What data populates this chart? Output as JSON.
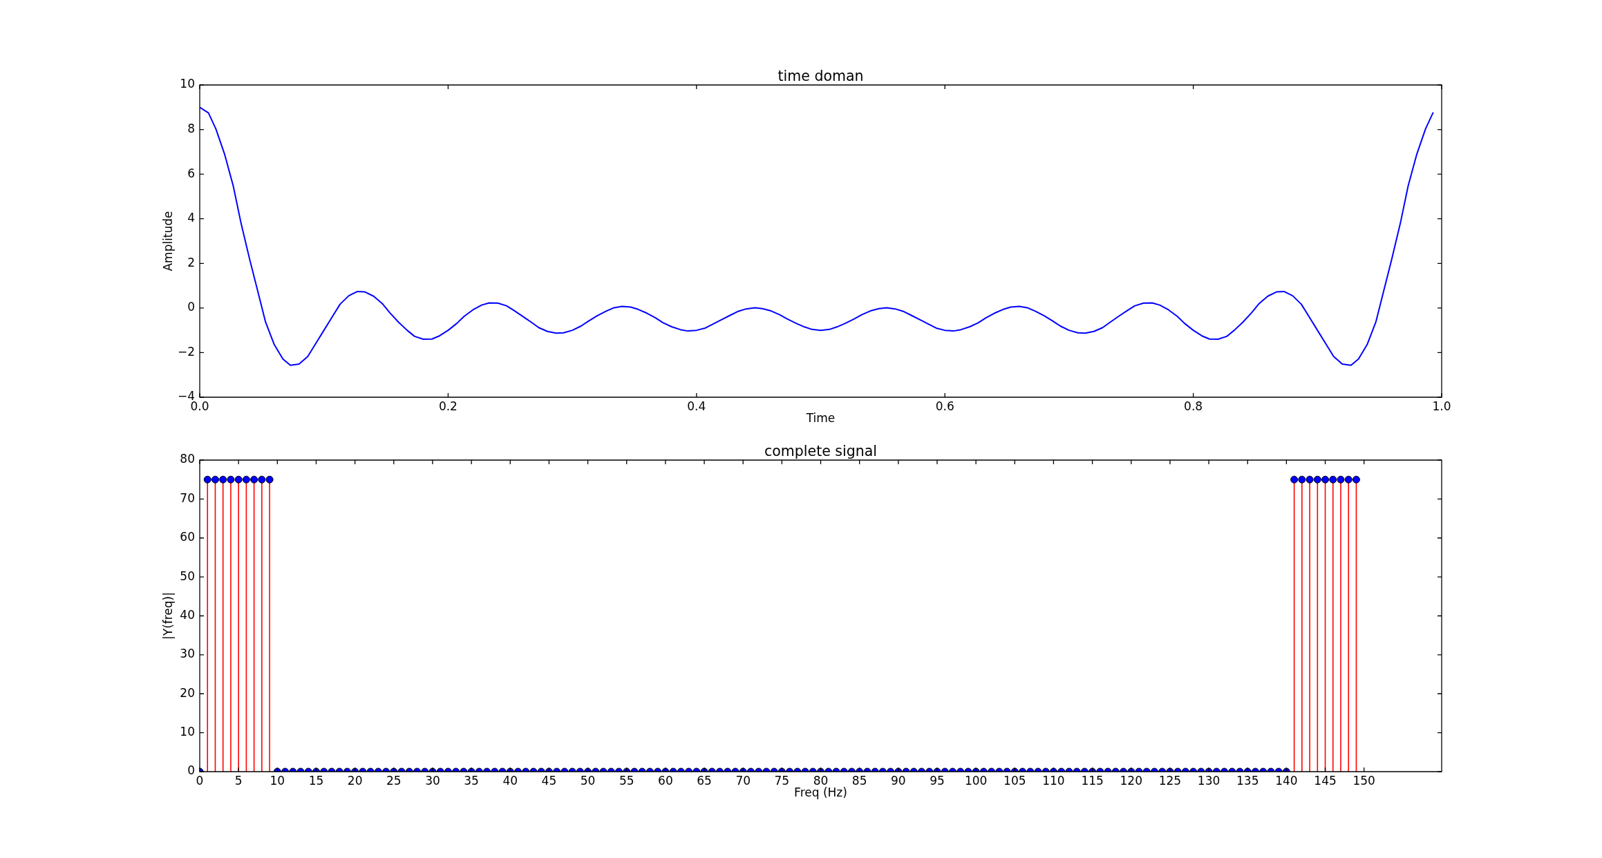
{
  "chart_data": [
    {
      "type": "line",
      "title": "time doman",
      "xlabel": "Time",
      "ylabel": "Amplitude",
      "x": [
        0,
        0.007,
        0.013,
        0.02,
        0.027,
        0.033,
        0.04,
        0.047,
        0.053,
        0.06,
        0.067,
        0.073,
        0.08,
        0.087,
        0.093,
        0.1,
        0.107,
        0.113,
        0.12,
        0.127,
        0.133,
        0.14,
        0.147,
        0.153,
        0.16,
        0.167,
        0.173,
        0.18,
        0.187,
        0.193,
        0.2,
        0.207,
        0.213,
        0.22,
        0.227,
        0.233,
        0.24,
        0.247,
        0.253,
        0.26,
        0.267,
        0.273,
        0.28,
        0.287,
        0.293,
        0.3,
        0.307,
        0.313,
        0.32,
        0.327,
        0.333,
        0.34,
        0.347,
        0.353,
        0.36,
        0.367,
        0.373,
        0.38,
        0.387,
        0.393,
        0.4,
        0.407,
        0.413,
        0.42,
        0.427,
        0.433,
        0.44,
        0.447,
        0.453,
        0.46,
        0.467,
        0.473,
        0.48,
        0.487,
        0.493,
        0.5,
        0.507,
        0.513,
        0.52,
        0.527,
        0.533,
        0.54,
        0.547,
        0.553,
        0.56,
        0.567,
        0.573,
        0.58,
        0.587,
        0.593,
        0.6,
        0.607,
        0.613,
        0.62,
        0.627,
        0.633,
        0.64,
        0.647,
        0.653,
        0.66,
        0.667,
        0.673,
        0.68,
        0.687,
        0.693,
        0.7,
        0.707,
        0.713,
        0.72,
        0.727,
        0.733,
        0.74,
        0.747,
        0.753,
        0.76,
        0.767,
        0.773,
        0.78,
        0.787,
        0.793,
        0.8,
        0.807,
        0.813,
        0.82,
        0.827,
        0.833,
        0.84,
        0.847,
        0.853,
        0.86,
        0.867,
        0.873,
        0.88,
        0.887,
        0.893,
        0.9,
        0.907,
        0.913,
        0.92,
        0.927,
        0.933,
        0.94,
        0.947,
        0.953,
        0.96,
        0.967,
        0.973,
        0.98,
        0.987,
        0.993
      ],
      "series": [
        {
          "color": "#0000ff",
          "values": [
            9.0,
            8.75,
            8.03,
            6.9,
            5.47,
            3.87,
            2.23,
            0.69,
            -0.63,
            -1.64,
            -2.29,
            -2.57,
            -2.51,
            -2.17,
            -1.63,
            -1.0,
            -0.37,
            0.17,
            0.55,
            0.74,
            0.72,
            0.53,
            0.2,
            -0.21,
            -0.63,
            -1.0,
            -1.27,
            -1.4,
            -1.39,
            -1.25,
            -1.0,
            -0.69,
            -0.37,
            -0.08,
            0.13,
            0.23,
            0.22,
            0.1,
            -0.11,
            -0.37,
            -0.64,
            -0.88,
            -1.05,
            -1.13,
            -1.11,
            -1.0,
            -0.81,
            -0.59,
            -0.35,
            -0.15,
            0.0,
            0.07,
            0.04,
            -0.06,
            -0.23,
            -0.44,
            -0.66,
            -0.84,
            -0.97,
            -1.03,
            -1.0,
            -0.9,
            -0.73,
            -0.53,
            -0.33,
            -0.16,
            -0.04,
            0.01,
            -0.03,
            -0.13,
            -0.3,
            -0.49,
            -0.68,
            -0.85,
            -0.96,
            -1.0,
            -0.96,
            -0.85,
            -0.68,
            -0.49,
            -0.3,
            -0.13,
            -0.03,
            0.01,
            -0.04,
            -0.16,
            -0.33,
            -0.53,
            -0.73,
            -0.9,
            -1.0,
            -1.03,
            -0.97,
            -0.84,
            -0.66,
            -0.44,
            -0.23,
            -0.06,
            0.04,
            0.07,
            0.0,
            -0.15,
            -0.35,
            -0.59,
            -0.81,
            -1.0,
            -1.11,
            -1.13,
            -1.05,
            -0.88,
            -0.64,
            -0.37,
            -0.11,
            0.1,
            0.22,
            0.23,
            0.13,
            -0.08,
            -0.37,
            -0.69,
            -1.0,
            -1.25,
            -1.39,
            -1.4,
            -1.27,
            -1.0,
            -0.63,
            -0.21,
            0.2,
            0.53,
            0.72,
            0.74,
            0.55,
            0.17,
            -0.37,
            -1.0,
            -1.63,
            -2.17,
            -2.51,
            -2.57,
            -2.29,
            -1.64,
            -0.63,
            0.69,
            2.23,
            3.87,
            5.47,
            6.9,
            8.03,
            8.75
          ]
        }
      ],
      "xlim": [
        0,
        1
      ],
      "ylim": [
        -4,
        10
      ],
      "xticks": [
        {
          "value": 0,
          "label": "0.0"
        },
        0.2,
        0.4,
        0.6,
        0.8,
        {
          "value": 1,
          "label": "1.0"
        }
      ],
      "yticks": [
        {
          "value": -4,
          "label": "−4"
        },
        {
          "value": -2,
          "label": "−2"
        },
        0,
        2,
        4,
        6,
        8,
        10
      ]
    },
    {
      "type": "lollipop",
      "title": "complete signal",
      "xlabel": "Freq (Hz)",
      "ylabel": "|Y(freq)|",
      "x": [
        0,
        1,
        2,
        3,
        4,
        5,
        6,
        7,
        8,
        9,
        10,
        11,
        12,
        13,
        14,
        15,
        16,
        17,
        18,
        19,
        20,
        21,
        22,
        23,
        24,
        25,
        26,
        27,
        28,
        29,
        30,
        31,
        32,
        33,
        34,
        35,
        36,
        37,
        38,
        39,
        40,
        41,
        42,
        43,
        44,
        45,
        46,
        47,
        48,
        49,
        50,
        51,
        52,
        53,
        54,
        55,
        56,
        57,
        58,
        59,
        60,
        61,
        62,
        63,
        64,
        65,
        66,
        67,
        68,
        69,
        70,
        71,
        72,
        73,
        74,
        75,
        76,
        77,
        78,
        79,
        80,
        81,
        82,
        83,
        84,
        85,
        86,
        87,
        88,
        89,
        90,
        91,
        92,
        93,
        94,
        95,
        96,
        97,
        98,
        99,
        100,
        101,
        102,
        103,
        104,
        105,
        106,
        107,
        108,
        109,
        110,
        111,
        112,
        113,
        114,
        115,
        116,
        117,
        118,
        119,
        120,
        121,
        122,
        123,
        124,
        125,
        126,
        127,
        128,
        129,
        130,
        131,
        132,
        133,
        134,
        135,
        136,
        137,
        138,
        139,
        140,
        141,
        142,
        143,
        144,
        145,
        146,
        147,
        148,
        149
      ],
      "series": [
        {
          "color": "#0000ff",
          "values": [
            0,
            75,
            75,
            75,
            75,
            75,
            75,
            75,
            75,
            75,
            0,
            0,
            0,
            0,
            0,
            0,
            0,
            0,
            0,
            0,
            0,
            0,
            0,
            0,
            0,
            0,
            0,
            0,
            0,
            0,
            0,
            0,
            0,
            0,
            0,
            0,
            0,
            0,
            0,
            0,
            0,
            0,
            0,
            0,
            0,
            0,
            0,
            0,
            0,
            0,
            0,
            0,
            0,
            0,
            0,
            0,
            0,
            0,
            0,
            0,
            0,
            0,
            0,
            0,
            0,
            0,
            0,
            0,
            0,
            0,
            0,
            0,
            0,
            0,
            0,
            0,
            0,
            0,
            0,
            0,
            0,
            0,
            0,
            0,
            0,
            0,
            0,
            0,
            0,
            0,
            0,
            0,
            0,
            0,
            0,
            0,
            0,
            0,
            0,
            0,
            0,
            0,
            0,
            0,
            0,
            0,
            0,
            0,
            0,
            0,
            0,
            0,
            0,
            0,
            0,
            0,
            0,
            0,
            0,
            0,
            0,
            0,
            0,
            0,
            0,
            0,
            0,
            0,
            0,
            0,
            0,
            0,
            0,
            0,
            0,
            0,
            0,
            0,
            0,
            0,
            0,
            75,
            75,
            75,
            75,
            75,
            75,
            75,
            75,
            75
          ]
        }
      ],
      "marker": "circle",
      "xlim": [
        0,
        160
      ],
      "ylim": [
        0,
        80
      ],
      "xticks": [
        0,
        5,
        10,
        15,
        20,
        25,
        30,
        35,
        40,
        45,
        50,
        55,
        60,
        65,
        70,
        75,
        80,
        85,
        90,
        95,
        100,
        105,
        110,
        115,
        120,
        125,
        130,
        135,
        140,
        145,
        150
      ],
      "yticks": [
        0,
        10,
        20,
        30,
        40,
        50,
        60,
        70,
        80
      ]
    }
  ]
}
